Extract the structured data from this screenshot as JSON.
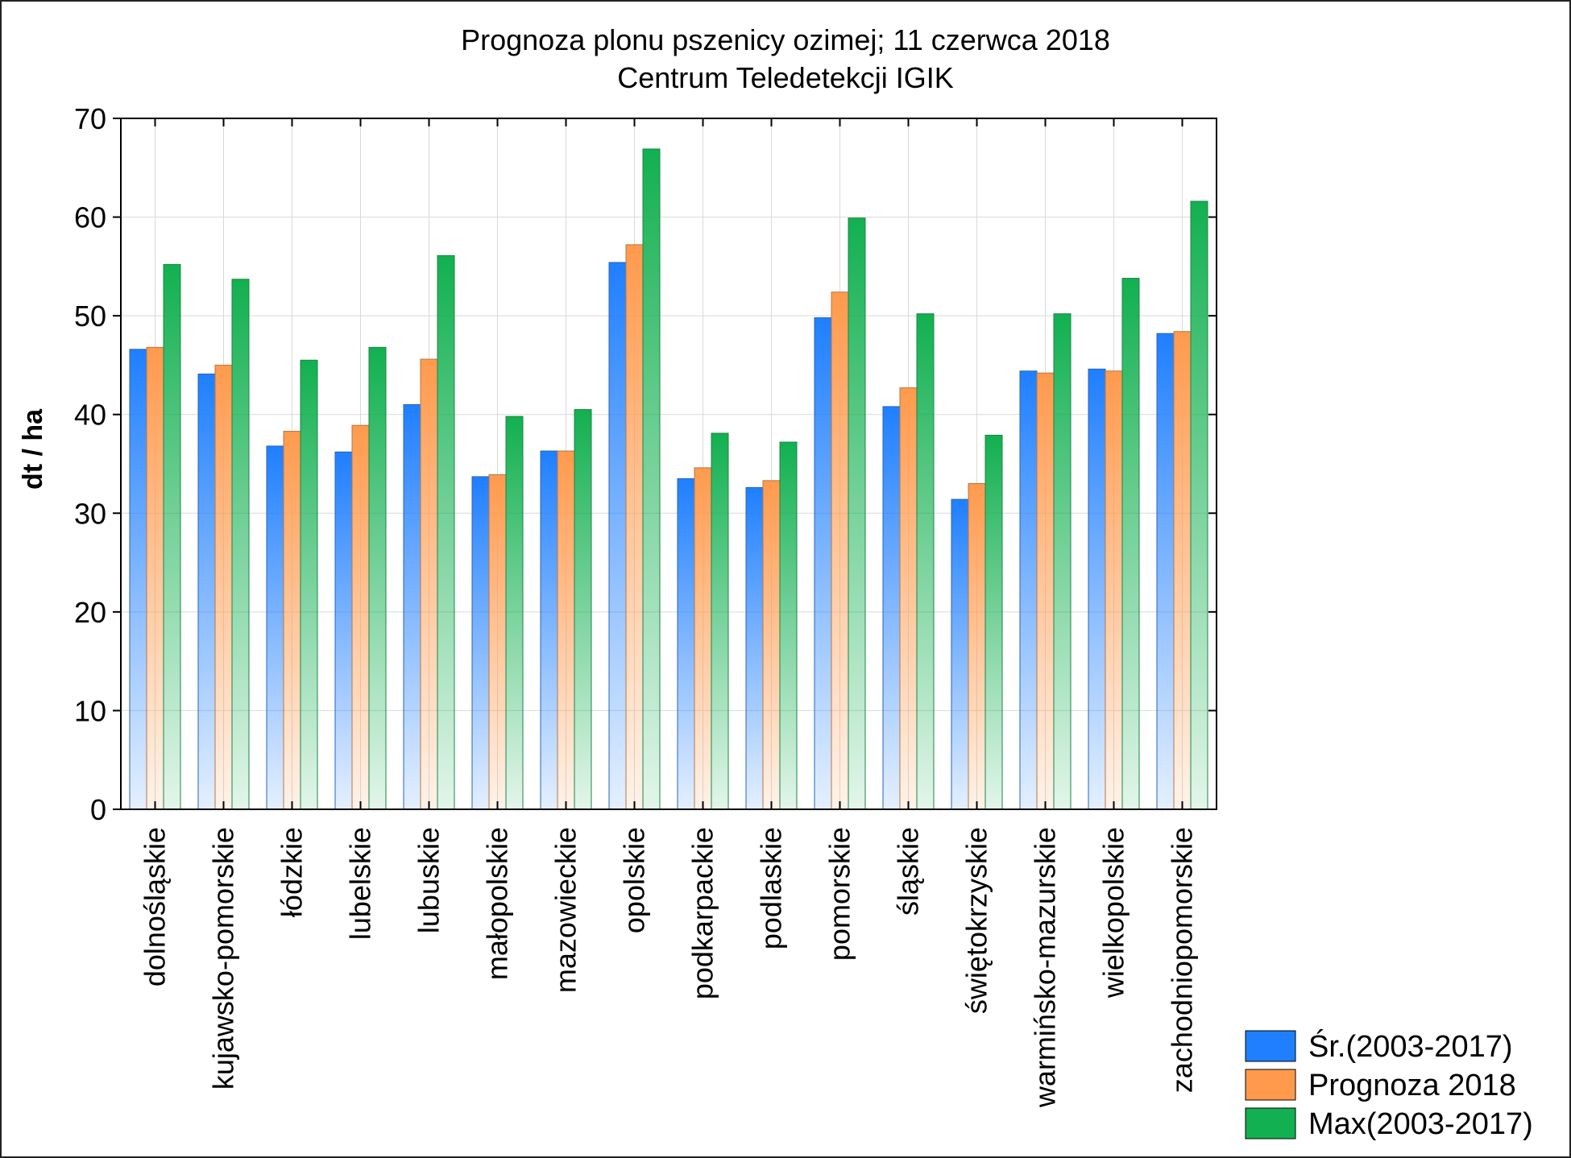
{
  "chart_data": {
    "type": "bar",
    "title": "Prognoza plonu pszenicy ozimej; 11 czerwca 2018",
    "subtitle": "Centrum Teledetekcji IGIK",
    "xlabel": "",
    "ylabel": "dt / ha",
    "ylim": [
      0,
      70
    ],
    "yticks": [
      0,
      10,
      20,
      30,
      40,
      50,
      60,
      70
    ],
    "grid": true,
    "legend_position": "bottom-right",
    "categories": [
      "dolnośląskie",
      "kujawsko-pomorskie",
      "łódzkie",
      "lubelskie",
      "lubuskie",
      "małopolskie",
      "mazowieckie",
      "opolskie",
      "podkarpackie",
      "podlaskie",
      "pomorskie",
      "śląskie",
      "świętokrzyskie",
      "warmińsko-mazurskie",
      "wielkopolskie",
      "zachodniopomorskie"
    ],
    "series": [
      {
        "name": "Śr.(2003-2017)",
        "color": "#1f7fff",
        "values": [
          46.6,
          44.1,
          36.8,
          36.2,
          41.0,
          33.7,
          36.3,
          55.4,
          33.5,
          32.6,
          49.8,
          40.8,
          31.4,
          44.4,
          44.6,
          48.2
        ]
      },
      {
        "name": "Prognoza 2018",
        "color": "#ff9a4d",
        "values": [
          46.8,
          45.0,
          38.3,
          38.9,
          45.6,
          33.9,
          36.3,
          57.2,
          34.6,
          33.3,
          52.4,
          42.7,
          33.0,
          44.2,
          44.4,
          48.4
        ]
      },
      {
        "name": "Max(2003-2017)",
        "color": "#12b050",
        "values": [
          55.2,
          53.7,
          45.5,
          46.8,
          56.1,
          39.8,
          40.5,
          66.9,
          38.1,
          37.2,
          59.9,
          50.2,
          37.9,
          50.2,
          53.8,
          61.6
        ]
      }
    ]
  }
}
